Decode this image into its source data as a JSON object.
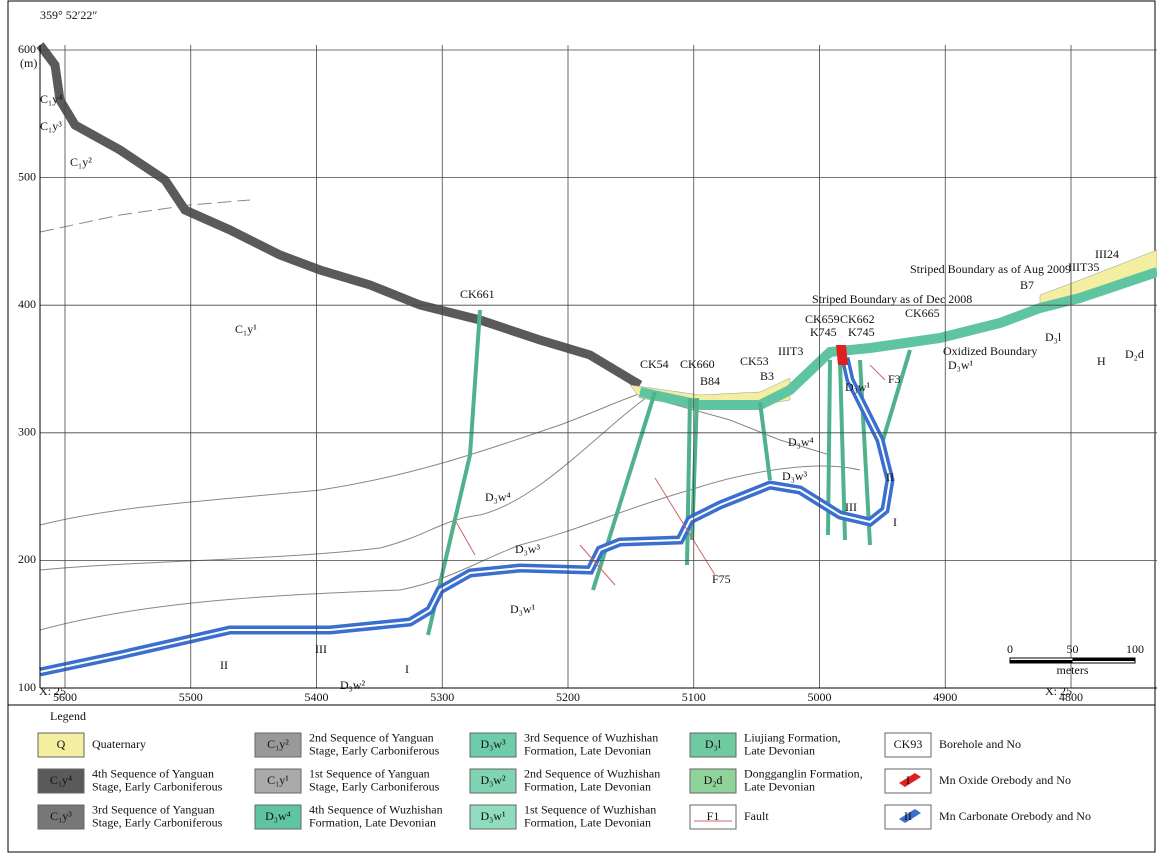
{
  "header": {
    "coordinate": "359° 52′22″",
    "unit": "(m)"
  },
  "y_axis": {
    "ticks": [
      600,
      500,
      400,
      300,
      200,
      100
    ]
  },
  "x_axis": {
    "prefix": "X: 25",
    "ticks": [
      5600,
      5500,
      5400,
      5300,
      5200,
      5100,
      5000,
      4900,
      4800
    ]
  },
  "labels": [
    "C₁y⁴",
    "C₁y³",
    "C₁y²",
    "C₁y¹",
    "CK661",
    "D₃w⁴",
    "D₃w³",
    "D₃w¹",
    "III",
    "II",
    "D₃w²",
    "I",
    "CK54",
    "CK660",
    "B84",
    "CK53",
    "B3",
    "IIIT3",
    "CK659",
    "K745",
    "CK662",
    "K745",
    "CK665",
    "Striped Boundary as of Dec 2008",
    "B7",
    "Striped Boundary as of Aug 2009",
    "IIIT35",
    "III24",
    "Oxidized Boundary",
    "D₃w¹",
    "D₃l",
    "H",
    "D₂d",
    "F3",
    "D₃w¹",
    "D₃w⁴",
    "D₃w³",
    "II",
    "III",
    "I",
    "F75"
  ],
  "scale_bar": {
    "ticks": [
      0,
      50,
      100
    ],
    "unit": "meters"
  },
  "legend": {
    "title": "Legend",
    "items": [
      {
        "symbol": "Q",
        "lines": [
          "Quaternary"
        ]
      },
      {
        "symbol": "C₁y⁴",
        "lines": [
          "4th Sequence of Yanguan",
          "Stage, Early Carboniferous"
        ]
      },
      {
        "symbol": "C₁y³",
        "lines": [
          "3rd Sequence of Yanguan",
          "Stage, Early Carboniferous"
        ]
      },
      {
        "symbol": "C₁y²",
        "lines": [
          "2nd Sequence of Yanguan",
          "Stage, Early Carboniferous"
        ]
      },
      {
        "symbol": "C₁y¹",
        "lines": [
          "1st Sequence of Yanguan",
          "Stage, Early Carboniferous"
        ]
      },
      {
        "symbol": "D₃w⁴",
        "lines": [
          "4th Sequence of Wuzhishan",
          "Formation, Late Devonian"
        ]
      },
      {
        "symbol": "D₃w³",
        "lines": [
          "3rd Sequence of Wuzhishan",
          "Formation, Late Devonian"
        ]
      },
      {
        "symbol": "D₃w²",
        "lines": [
          "2nd Sequence of Wuzhishan",
          "Formation, Late Devonian"
        ]
      },
      {
        "symbol": "D₃w¹",
        "lines": [
          "1st Sequence of Wuzhishan",
          "Formation, Late Devonian"
        ]
      },
      {
        "symbol": "D₃l",
        "lines": [
          "Liujiang Formation,",
          "Late Devonian"
        ]
      },
      {
        "symbol": "D₂d",
        "lines": [
          "Dongganglin Formation,",
          "Late Devonian"
        ]
      },
      {
        "symbol": "F1",
        "lines": [
          "Fault"
        ]
      },
      {
        "symbol": "CK93",
        "lines": [
          "Borehole and No"
        ]
      },
      {
        "symbol": "I",
        "lines": [
          "Mn Oxide Orebody and No"
        ]
      },
      {
        "symbol": "II",
        "lines": [
          "Mn Carbonate Orebody and No"
        ]
      }
    ]
  }
}
